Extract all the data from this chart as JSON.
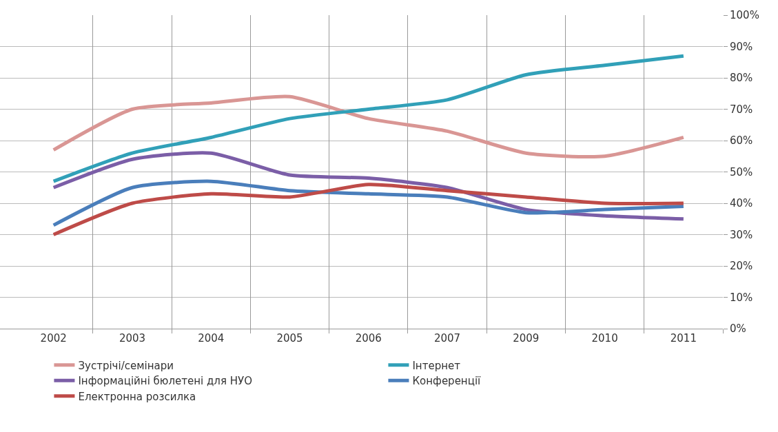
{
  "chart_data": {
    "type": "line",
    "categories": [
      "2002",
      "2003",
      "2004",
      "2005",
      "2006",
      "2007",
      "2009",
      "2010",
      "2011"
    ],
    "series": [
      {
        "name": "Зустрічі/семінари",
        "color": "#d99694",
        "values": [
          57,
          70,
          72,
          74,
          67,
          63,
          56,
          55,
          61
        ]
      },
      {
        "name": "Інтернет",
        "color": "#31a0b8",
        "values": [
          47,
          56,
          61,
          67,
          70,
          73,
          81,
          84,
          87
        ]
      },
      {
        "name": "Інформаційні бюлетені для НУО",
        "color": "#7b5ea7",
        "values": [
          45,
          54,
          56,
          49,
          48,
          45,
          38,
          36,
          35
        ]
      },
      {
        "name": "Конференції",
        "color": "#4a7ebb",
        "values": [
          33,
          45,
          47,
          44,
          43,
          42,
          37,
          38,
          39
        ]
      },
      {
        "name": "Електронна розсилка",
        "color": "#be4b48",
        "values": [
          30,
          40,
          43,
          42,
          46,
          44,
          42,
          40,
          40
        ]
      }
    ],
    "ylim": [
      0,
      100
    ],
    "yticks": [
      {
        "value": 0,
        "label": "0%"
      },
      {
        "value": 10,
        "label": "10%"
      },
      {
        "value": 20,
        "label": "20%"
      },
      {
        "value": 30,
        "label": "30%"
      },
      {
        "value": 40,
        "label": "40%"
      },
      {
        "value": 50,
        "label": "50%"
      },
      {
        "value": 60,
        "label": "60%"
      },
      {
        "value": 70,
        "label": "70%"
      },
      {
        "value": 80,
        "label": "80%"
      },
      {
        "value": 90,
        "label": "90%"
      },
      {
        "value": 100,
        "label": "100%"
      }
    ],
    "grid": true,
    "legend": "bottom",
    "marker": "none",
    "line_style": "solid"
  }
}
